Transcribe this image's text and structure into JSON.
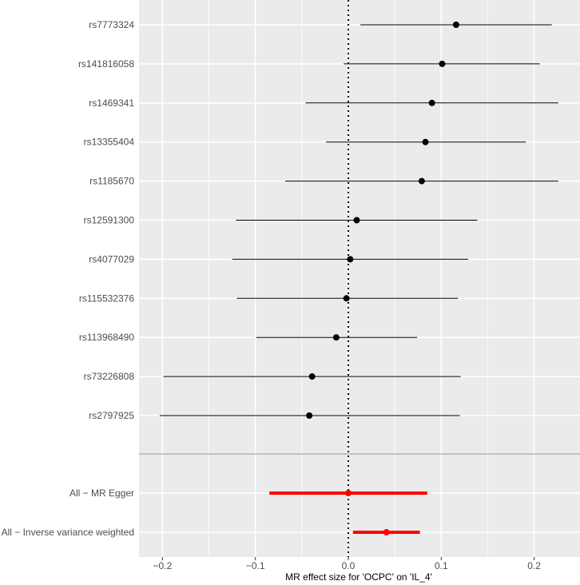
{
  "chart_data": {
    "type": "forest",
    "xlabel": "MR effect size for 'OCPC' on 'IL_4'",
    "xlim": [
      -0.227,
      0.247
    ],
    "xticks": [
      -0.2,
      -0.1,
      0.0,
      0.1,
      0.2
    ],
    "xtick_labels": [
      "−0.2",
      "−0.1",
      "0.0",
      "0.1",
      "0.2"
    ],
    "reference_line": 0,
    "grid": true,
    "snps": [
      {
        "label": "rs7773324",
        "b": 0.116,
        "lo": 0.013,
        "hi": 0.219
      },
      {
        "label": "rs141816058",
        "b": 0.101,
        "lo": -0.005,
        "hi": 0.206
      },
      {
        "label": "rs1469341",
        "b": 0.09,
        "lo": -0.046,
        "hi": 0.226
      },
      {
        "label": "rs13355404",
        "b": 0.083,
        "lo": -0.024,
        "hi": 0.191
      },
      {
        "label": "rs1185670",
        "b": 0.079,
        "lo": -0.068,
        "hi": 0.226
      },
      {
        "label": "rs12591300",
        "b": 0.009,
        "lo": -0.121,
        "hi": 0.139
      },
      {
        "label": "rs4077029",
        "b": 0.002,
        "lo": -0.125,
        "hi": 0.129
      },
      {
        "label": "rs115532376",
        "b": -0.002,
        "lo": -0.12,
        "hi": 0.118
      },
      {
        "label": "rs113968490",
        "b": -0.013,
        "lo": -0.099,
        "hi": 0.074
      },
      {
        "label": "rs73226808",
        "b": -0.039,
        "lo": -0.199,
        "hi": 0.121
      },
      {
        "label": "rs2797925",
        "b": -0.042,
        "lo": -0.203,
        "hi": 0.12
      }
    ],
    "summary": [
      {
        "label": "All − MR Egger",
        "b": 0.0,
        "lo": -0.085,
        "hi": 0.085
      },
      {
        "label": "All − Inverse variance weighted",
        "b": 0.041,
        "lo": 0.005,
        "hi": 0.077
      }
    ],
    "colors": {
      "panel": "#ebebeb",
      "grid": "#ffffff",
      "snp": "#000000",
      "summary": "#ff0000",
      "divider": "#b3b3b3",
      "tick_text": "#4d4d4d",
      "axis_text": "#000000"
    }
  }
}
